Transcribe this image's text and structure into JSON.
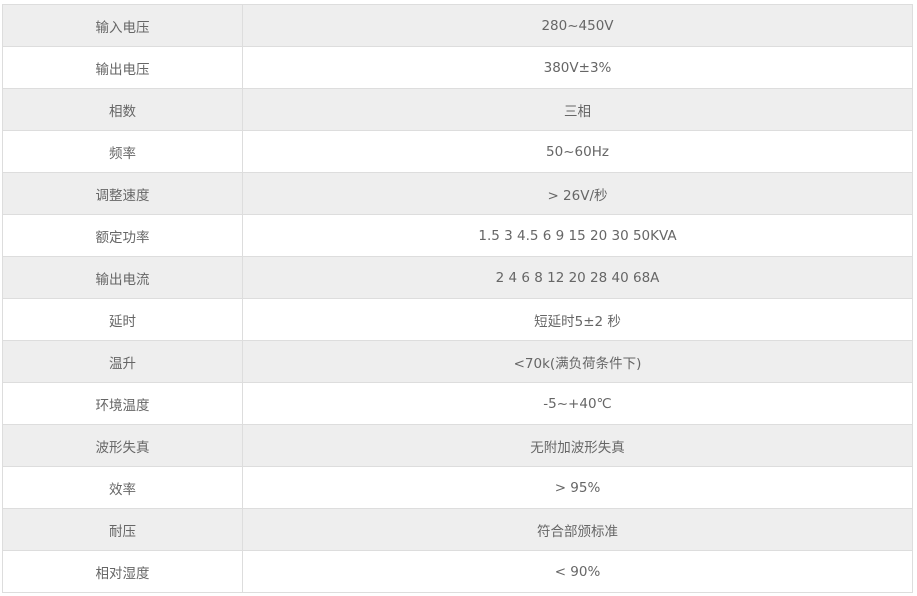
{
  "spec_table": {
    "rows": [
      {
        "label": "输入电压",
        "value": "280~450V"
      },
      {
        "label": "输出电压",
        "value": "380V±3%"
      },
      {
        "label": "相数",
        "value": "三相"
      },
      {
        "label": "频率",
        "value": "50~60Hz"
      },
      {
        "label": "调整速度",
        "value": "> 26V/秒"
      },
      {
        "label": "额定功率",
        "value": "1.5 3 4.5 6 9 15 20 30 50KVA"
      },
      {
        "label": "输出电流",
        "value": "2 4 6 8 12 20 28 40 68A"
      },
      {
        "label": "延时",
        "value": "短延时5±2 秒"
      },
      {
        "label": "温升",
        "value": "<70k(满负荷条件下)"
      },
      {
        "label": "环境温度",
        "value": "-5~+40℃"
      },
      {
        "label": "波形失真",
        "value": "无附加波形失真"
      },
      {
        "label": "效率",
        "value": "> 95%"
      },
      {
        "label": "耐压",
        "value": "符合部颁标准"
      },
      {
        "label": "相对湿度",
        "value": "< 90%"
      }
    ]
  },
  "colors": {
    "row_alt": "#eeeeee",
    "border": "#dddddd",
    "text": "#666666"
  }
}
